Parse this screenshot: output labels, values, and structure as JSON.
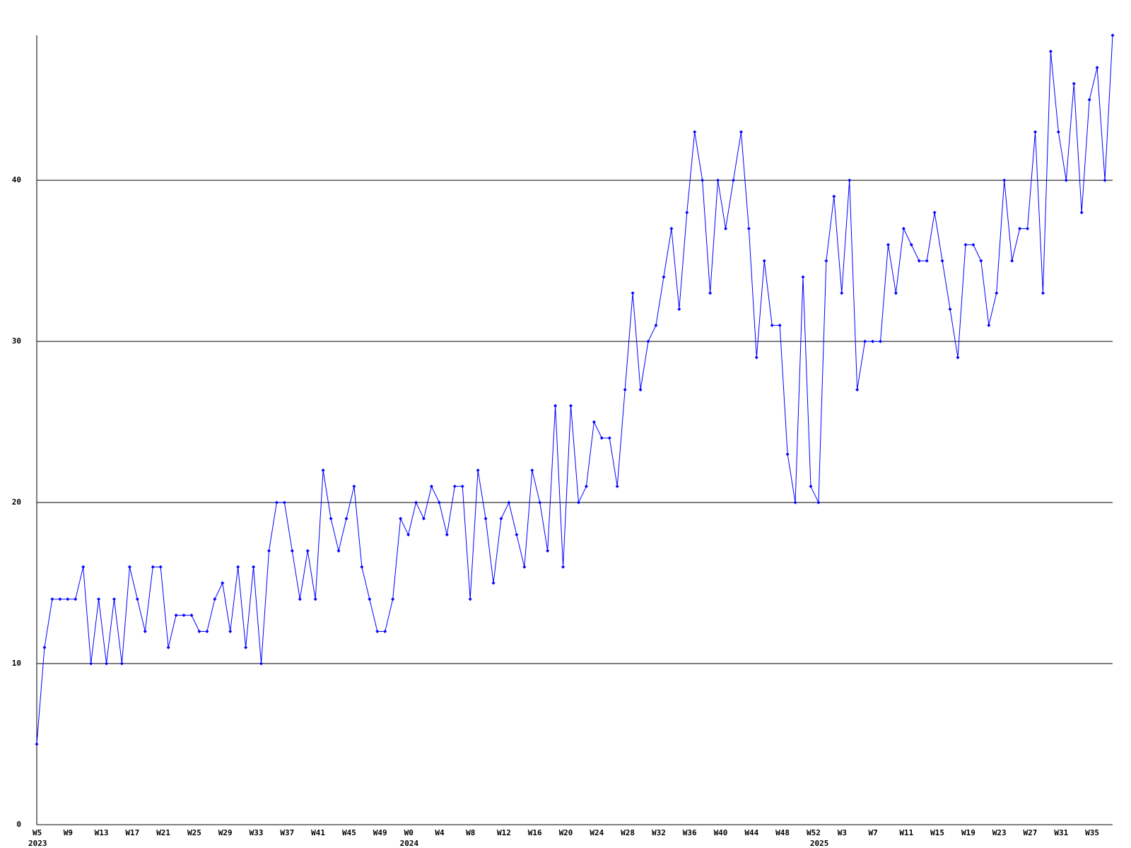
{
  "chart_data": {
    "type": "line",
    "categories": [
      "W5",
      null,
      null,
      null,
      "W9",
      null,
      null,
      null,
      "W13",
      null,
      null,
      null,
      "W17",
      null,
      null,
      null,
      "W21",
      null,
      null,
      null,
      "W25",
      null,
      null,
      null,
      "W29",
      null,
      null,
      null,
      "W33",
      null,
      null,
      null,
      "W37",
      null,
      null,
      null,
      "W41",
      null,
      null,
      null,
      "W45",
      null,
      null,
      null,
      "W49",
      null,
      null,
      null,
      "W0",
      null,
      null,
      null,
      "W4",
      null,
      null,
      null,
      "W8",
      null,
      null,
      null,
      "W12",
      null,
      null,
      null,
      "W16",
      null,
      null,
      null,
      "W20",
      null,
      null,
      null,
      "W24",
      null,
      null,
      null,
      "W28",
      null,
      null,
      null,
      "W32",
      null,
      null,
      null,
      "W36",
      null,
      null,
      null,
      "W40",
      null,
      null,
      null,
      "W44",
      null,
      null,
      null,
      "W48",
      null,
      null,
      null,
      "W52",
      null,
      null,
      null,
      "W3",
      null,
      null,
      null,
      "W7",
      null,
      null,
      null,
      "W11",
      null,
      null,
      null,
      "W15",
      null,
      null,
      null,
      "W19",
      null,
      null,
      null,
      "W23",
      null,
      null,
      null,
      "W27",
      null,
      null,
      null,
      "W31",
      null,
      null,
      null,
      "W35",
      null,
      null,
      null
    ],
    "year_row": [
      "2023",
      null,
      null,
      null,
      null,
      null,
      null,
      null,
      null,
      null,
      null,
      null,
      null,
      null,
      null,
      null,
      null,
      null,
      null,
      null,
      null,
      null,
      null,
      null,
      null,
      null,
      null,
      null,
      null,
      null,
      null,
      null,
      null,
      null,
      null,
      null,
      null,
      null,
      null,
      null,
      null,
      null,
      null,
      null,
      null,
      null,
      null,
      null,
      "2024",
      null,
      null,
      null,
      null,
      null,
      null,
      null,
      null,
      null,
      null,
      null,
      null,
      null,
      null,
      null,
      null,
      null,
      null,
      null,
      null,
      null,
      null,
      null,
      null,
      null,
      null,
      null,
      null,
      null,
      null,
      null,
      null,
      null,
      null,
      null,
      null,
      null,
      null,
      null,
      null,
      null,
      null,
      null,
      null,
      null,
      null,
      null,
      null,
      null,
      null,
      null,
      null,
      "2025",
      null,
      null,
      null,
      null,
      null,
      null,
      null,
      null,
      null,
      null,
      null,
      null,
      null,
      null,
      null,
      null,
      null,
      null,
      null,
      null,
      null,
      null,
      null,
      null,
      null,
      null,
      null,
      null,
      null,
      null,
      null,
      null,
      null,
      null,
      null,
      null,
      null,
      null
    ],
    "series": [
      {
        "color": "#0000ff",
        "values": [
          5,
          11,
          14,
          14,
          14,
          14,
          16,
          10,
          14,
          10,
          14,
          10,
          16,
          14,
          12,
          16,
          16,
          11,
          13,
          13,
          13,
          12,
          12,
          14,
          15,
          12,
          16,
          11,
          16,
          10,
          17,
          20,
          20,
          17,
          14,
          17,
          14,
          22,
          19,
          17,
          19,
          21,
          16,
          14,
          12,
          12,
          14,
          19,
          18,
          20,
          19,
          21,
          20,
          18,
          21,
          21,
          14,
          22,
          19,
          15,
          19,
          20,
          18,
          16,
          22,
          20,
          17,
          26,
          16,
          26,
          20,
          21,
          25,
          24,
          24,
          21,
          27,
          33,
          27,
          30,
          31,
          34,
          37,
          32,
          38,
          43,
          40,
          33,
          40,
          37,
          40,
          43,
          37,
          29,
          35,
          31,
          31,
          23,
          20,
          34,
          21,
          20,
          35,
          39,
          33,
          40,
          27,
          30,
          30,
          30,
          36,
          33,
          37,
          36,
          35,
          35,
          38,
          35,
          32,
          29,
          36,
          36,
          35,
          31,
          33,
          40,
          35,
          37,
          37,
          43,
          33,
          48,
          43,
          40,
          46,
          38,
          45,
          47,
          40,
          49
        ]
      }
    ],
    "ylim": [
      0,
      49
    ],
    "yticks": [
      0,
      10,
      20,
      30,
      40
    ],
    "grid": true
  }
}
